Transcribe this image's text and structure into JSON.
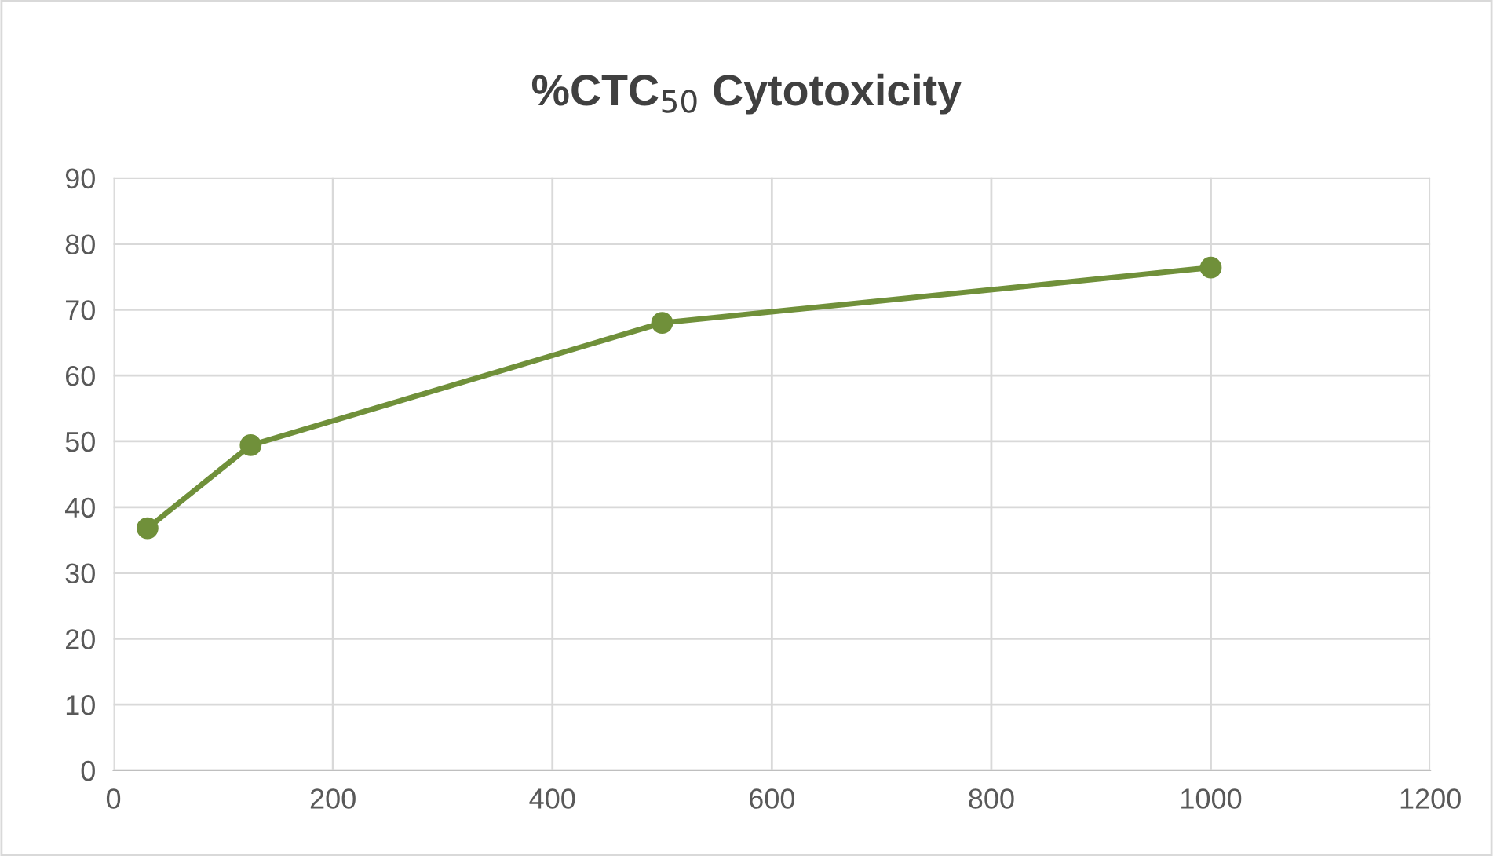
{
  "chart_data": {
    "type": "line",
    "title": "%CTC$_{50}$ Cytotoxicity",
    "series": [
      {
        "color": "#70903a",
        "x": [
          31,
          125,
          500,
          1000
        ],
        "values": [
          36.8,
          49.4,
          68.0,
          76.4
        ]
      }
    ],
    "xlim": [
      0,
      1200
    ],
    "xticks": [
      0,
      200,
      400,
      600,
      800,
      1000,
      1200
    ],
    "ylim": [
      0,
      90
    ],
    "yticks": [
      0,
      10,
      20,
      30,
      40,
      50,
      60,
      70,
      80,
      90
    ],
    "grid": true,
    "marker": "circle",
    "line_style": "solid",
    "legend": false
  }
}
